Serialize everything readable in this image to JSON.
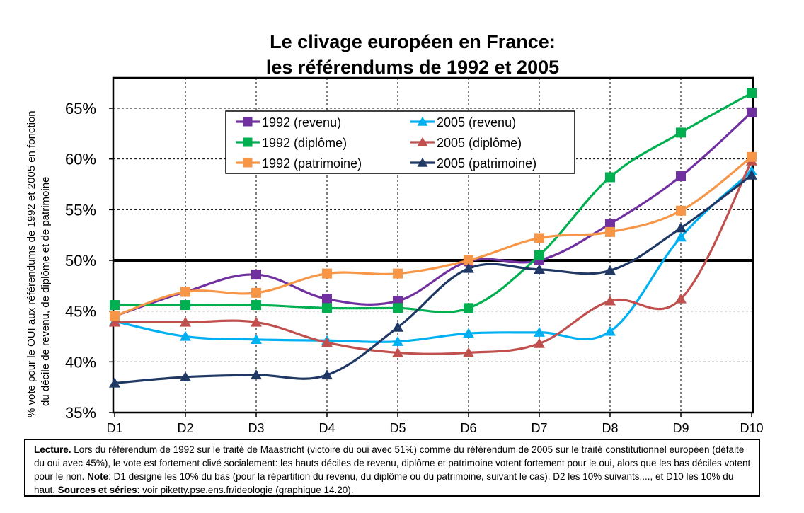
{
  "chart_data": {
    "type": "line",
    "title_line1": "Le clivage européen en France:",
    "title_line2": "les référendums de 1992 et 2005",
    "ylabel_line1": "% vote pour le OUI aux référendums de 1992 et 2005 en fonction",
    "ylabel_line2": "du décile de revenu, de diplôme et de patrimoine",
    "categories": [
      "D1",
      "D2",
      "D3",
      "D4",
      "D5",
      "D6",
      "D7",
      "D8",
      "D9",
      "D10"
    ],
    "ylim": [
      35,
      68
    ],
    "yticks": [
      35,
      40,
      45,
      50,
      55,
      60,
      65
    ],
    "ytick_labels": [
      "35%",
      "40%",
      "45%",
      "50%",
      "55%",
      "60%",
      "65%"
    ],
    "reference_line": 50,
    "grid": true,
    "legend_position": "top-left",
    "series": [
      {
        "name": "1992 (revenu)",
        "color": "#7030a0",
        "marker": "square",
        "values": [
          44.5,
          46.9,
          48.6,
          46.2,
          46.0,
          49.9,
          50.0,
          53.6,
          58.3,
          64.6
        ]
      },
      {
        "name": "2005 (revenu)",
        "color": "#00b0f0",
        "marker": "triangle",
        "values": [
          44.0,
          42.5,
          42.2,
          42.1,
          42.0,
          42.8,
          42.9,
          43.0,
          52.3,
          58.8
        ]
      },
      {
        "name": "1992 (diplôme)",
        "color": "#00b050",
        "marker": "square",
        "values": [
          45.6,
          45.6,
          45.6,
          45.3,
          45.3,
          45.3,
          50.5,
          58.2,
          62.6,
          66.5
        ]
      },
      {
        "name": "2005 (diplôme)",
        "color": "#c0504d",
        "marker": "triangle",
        "values": [
          43.9,
          43.9,
          43.9,
          41.9,
          40.9,
          40.9,
          41.8,
          46.0,
          46.2,
          59.8
        ]
      },
      {
        "name": "1992 (patrimoine)",
        "color": "#f79646",
        "marker": "square",
        "values": [
          44.5,
          46.9,
          46.8,
          48.7,
          48.7,
          50.0,
          52.2,
          52.8,
          54.9,
          60.2
        ]
      },
      {
        "name": "2005 (patrimoine)",
        "color": "#1f3864",
        "marker": "triangle",
        "values": [
          37.9,
          38.5,
          38.7,
          38.7,
          43.4,
          49.2,
          49.1,
          49.0,
          53.2,
          58.4
        ]
      }
    ]
  },
  "note": {
    "lecture_label": "Lecture.",
    "lecture_text": "Lors du référendum de 1992 sur le traité de Maastricht (victoire du oui avec 51%) comme du référendum de 2005 sur le traité constitutionnel européen (défaite du oui avec 45%), le vote est fortement clivé socialement: les hauts déciles de revenu, diplôme et patrimoine votent fortement pour le oui, alors que les bas déciles votent pour le non.",
    "note_label": "Note",
    "note_text": ": D1 designe les 10% du bas (pour la répartition du revenu, du diplôme ou du patrimoine, suivant le cas), D2 les 10% suivants,..., et D10 les 10% du haut.",
    "sources_label": "Sources et séries",
    "sources_text": ": voir piketty.pse.ens.fr/ideologie (graphique 14.20)."
  }
}
